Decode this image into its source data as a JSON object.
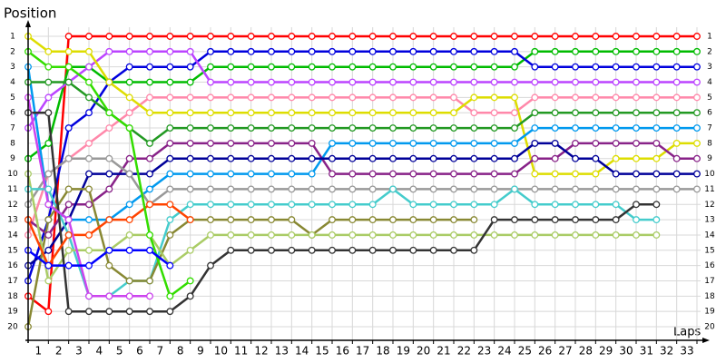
{
  "chart_data": {
    "type": "lapchart",
    "y_label": "Position",
    "x_label": "Laps",
    "x": [
      0,
      1,
      2,
      3,
      4,
      5,
      6,
      7,
      8,
      9,
      10,
      11,
      12,
      13,
      14,
      15,
      16,
      17,
      18,
      19,
      20,
      21,
      22,
      23,
      24,
      25,
      26,
      27,
      28,
      29,
      30,
      31,
      32,
      33
    ],
    "xlim": [
      0,
      33
    ],
    "ylim": [
      1,
      20
    ],
    "y_inverted": true,
    "grid": true,
    "xticks": [
      1,
      2,
      3,
      4,
      5,
      6,
      7,
      8,
      9,
      10,
      11,
      12,
      13,
      14,
      15,
      16,
      17,
      18,
      19,
      20,
      21,
      22,
      23,
      24,
      25,
      26,
      27,
      28,
      29,
      30,
      31,
      32,
      33
    ],
    "yticks": [
      1,
      2,
      3,
      4,
      5,
      6,
      7,
      8,
      9,
      10,
      11,
      12,
      13,
      14,
      15,
      16,
      17,
      18,
      19,
      20
    ],
    "series": [
      {
        "color": "#ff0000",
        "values": [
          18,
          19,
          1,
          1,
          1,
          1,
          1,
          1,
          1,
          1,
          1,
          1,
          1,
          1,
          1,
          1,
          1,
          1,
          1,
          1,
          1,
          1,
          1,
          1,
          1,
          1,
          1,
          1,
          1,
          1,
          1,
          1,
          1,
          1
        ]
      },
      {
        "color": "#00bb00",
        "values": [
          9,
          8,
          3,
          3,
          4,
          4,
          4,
          4,
          4,
          3,
          3,
          3,
          3,
          3,
          3,
          3,
          3,
          3,
          3,
          3,
          3,
          3,
          3,
          3,
          3,
          2,
          2,
          2,
          2,
          2,
          2,
          2,
          2,
          2
        ]
      },
      {
        "color": "#0000dd",
        "values": [
          17,
          13,
          7,
          6,
          4,
          3,
          3,
          3,
          3,
          2,
          2,
          2,
          2,
          2,
          2,
          2,
          2,
          2,
          2,
          2,
          2,
          2,
          2,
          2,
          2,
          3,
          3,
          3,
          3,
          3,
          3,
          3,
          3,
          3
        ]
      },
      {
        "color": "#bb44ff",
        "values": [
          7,
          5,
          4,
          3,
          2,
          2,
          2,
          2,
          2,
          4,
          4,
          4,
          4,
          4,
          4,
          4,
          4,
          4,
          4,
          4,
          4,
          4,
          4,
          4,
          4,
          4,
          4,
          4,
          4,
          4,
          4,
          4,
          4,
          4
        ]
      },
      {
        "color": "#ff88aa",
        "values": [
          14,
          10,
          9,
          8,
          7,
          6,
          5,
          5,
          5,
          5,
          5,
          5,
          5,
          5,
          5,
          5,
          5,
          5,
          5,
          5,
          5,
          5,
          6,
          6,
          6,
          5,
          5,
          5,
          5,
          5,
          5,
          5,
          5,
          5
        ]
      },
      {
        "color": "#dddd00",
        "values": [
          1,
          2,
          2,
          2,
          4,
          5,
          6,
          6,
          6,
          6,
          6,
          6,
          6,
          6,
          6,
          6,
          6,
          6,
          6,
          6,
          6,
          6,
          5,
          5,
          5,
          10,
          10,
          10,
          10,
          9,
          9,
          9,
          8,
          8
        ]
      },
      {
        "color": "#229922",
        "values": [
          4,
          4,
          4,
          5,
          6,
          7,
          8,
          7,
          7,
          7,
          7,
          7,
          7,
          7,
          7,
          7,
          7,
          7,
          7,
          7,
          7,
          7,
          7,
          7,
          7,
          6,
          6,
          6,
          6,
          6,
          6,
          6,
          6,
          6
        ]
      },
      {
        "color": "#0099ee",
        "values": [
          3,
          12,
          13,
          13,
          13,
          12,
          11,
          10,
          10,
          10,
          10,
          10,
          10,
          10,
          10,
          8,
          8,
          8,
          8,
          8,
          8,
          8,
          8,
          8,
          8,
          7,
          7,
          7,
          7,
          7,
          7,
          7,
          7,
          7
        ]
      },
      {
        "color": "#882288",
        "values": [
          13,
          14,
          12,
          12,
          11,
          9,
          9,
          8,
          8,
          8,
          8,
          8,
          8,
          8,
          8,
          10,
          10,
          10,
          10,
          10,
          10,
          10,
          10,
          10,
          10,
          9,
          9,
          8,
          8,
          8,
          8,
          8,
          9,
          9
        ]
      },
      {
        "color": "#000099",
        "values": [
          16,
          15,
          13,
          10,
          10,
          10,
          10,
          9,
          9,
          9,
          9,
          9,
          9,
          9,
          9,
          9,
          9,
          9,
          9,
          9,
          9,
          9,
          9,
          9,
          9,
          8,
          8,
          9,
          9,
          10,
          10,
          10,
          10,
          10
        ]
      },
      {
        "color": "#999999",
        "values": [
          12,
          10,
          9,
          9,
          9,
          10,
          12,
          11,
          11,
          11,
          11,
          11,
          11,
          11,
          11,
          11,
          11,
          11,
          11,
          11,
          11,
          11,
          11,
          11,
          11,
          11,
          11,
          11,
          11,
          11,
          11,
          11,
          11,
          11
        ]
      },
      {
        "color": "#44cccc",
        "values": [
          11,
          11,
          14,
          18,
          18,
          17,
          17,
          13,
          12,
          12,
          12,
          12,
          12,
          12,
          12,
          12,
          12,
          12,
          11,
          12,
          12,
          12,
          12,
          12,
          11,
          12,
          12,
          12,
          12,
          12,
          13,
          13,
          null,
          null
        ]
      },
      {
        "color": "#888833",
        "values": [
          20,
          13,
          11,
          11,
          16,
          17,
          17,
          14,
          13,
          13,
          13,
          13,
          13,
          13,
          14,
          13,
          13,
          13,
          13,
          13,
          13,
          13,
          13,
          null,
          null,
          null,
          null,
          null,
          null,
          null,
          null,
          null,
          null,
          null
        ]
      },
      {
        "color": "#aacc66",
        "values": [
          10,
          17,
          15,
          15,
          15,
          14,
          14,
          16,
          15,
          14,
          14,
          14,
          14,
          14,
          14,
          14,
          14,
          14,
          14,
          14,
          14,
          14,
          14,
          14,
          14,
          14,
          14,
          14,
          14,
          14,
          14,
          14,
          null,
          null
        ]
      },
      {
        "color": "#333333",
        "values": [
          6,
          6,
          19,
          19,
          19,
          19,
          19,
          19,
          18,
          16,
          15,
          15,
          15,
          15,
          15,
          15,
          15,
          15,
          15,
          15,
          15,
          15,
          15,
          13,
          13,
          13,
          13,
          13,
          13,
          13,
          12,
          12,
          null,
          null
        ]
      },
      {
        "color": "#ff4400",
        "values": [
          13,
          16,
          14,
          14,
          13,
          13,
          12,
          12,
          13,
          null,
          null,
          null,
          null,
          null,
          null,
          null,
          null,
          null,
          null,
          null,
          null,
          null,
          null,
          null,
          null,
          null,
          null,
          null,
          null,
          null,
          null,
          null,
          null,
          null
        ]
      },
      {
        "color": "#33dd00",
        "values": [
          2,
          3,
          3,
          4,
          6,
          7,
          14,
          18,
          17,
          null,
          null,
          null,
          null,
          null,
          null,
          null,
          null,
          null,
          null,
          null,
          null,
          null,
          null,
          null,
          null,
          null,
          null,
          null,
          null,
          null,
          null,
          null,
          null,
          null
        ]
      },
      {
        "color": "#cc44ee",
        "values": [
          5,
          12,
          13,
          18,
          18,
          18,
          18,
          null,
          null,
          null,
          null,
          null,
          null,
          null,
          null,
          null,
          null,
          null,
          null,
          null,
          null,
          null,
          null,
          null,
          null,
          null,
          null,
          null,
          null,
          null,
          null,
          null,
          null,
          null
        ]
      },
      {
        "color": "#0000ff",
        "values": [
          15,
          16,
          16,
          16,
          15,
          15,
          15,
          16,
          null,
          null,
          null,
          null,
          null,
          null,
          null,
          null,
          null,
          null,
          null,
          null,
          null,
          null,
          null,
          null,
          null,
          null,
          null,
          null,
          null,
          null,
          null,
          null,
          null,
          null
        ]
      }
    ]
  }
}
